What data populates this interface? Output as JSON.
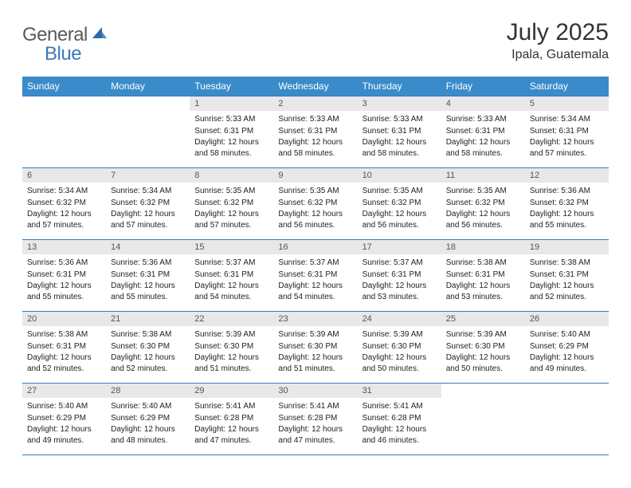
{
  "logo": {
    "general": "General",
    "blue": "Blue"
  },
  "title": {
    "month_year": "July 2025",
    "location": "Ipala, Guatemala"
  },
  "colors": {
    "header_bg": "#3a8bc9",
    "header_text": "#ffffff",
    "daynum_bg": "#e8e8e8",
    "border": "#3a7ab8",
    "logo_gray": "#5a5a5a",
    "logo_blue": "#3a7ab8"
  },
  "weekdays": [
    "Sunday",
    "Monday",
    "Tuesday",
    "Wednesday",
    "Thursday",
    "Friday",
    "Saturday"
  ],
  "weeks": [
    [
      null,
      null,
      {
        "n": "1",
        "sr": "Sunrise: 5:33 AM",
        "ss": "Sunset: 6:31 PM",
        "dl": "Daylight: 12 hours and 58 minutes."
      },
      {
        "n": "2",
        "sr": "Sunrise: 5:33 AM",
        "ss": "Sunset: 6:31 PM",
        "dl": "Daylight: 12 hours and 58 minutes."
      },
      {
        "n": "3",
        "sr": "Sunrise: 5:33 AM",
        "ss": "Sunset: 6:31 PM",
        "dl": "Daylight: 12 hours and 58 minutes."
      },
      {
        "n": "4",
        "sr": "Sunrise: 5:33 AM",
        "ss": "Sunset: 6:31 PM",
        "dl": "Daylight: 12 hours and 58 minutes."
      },
      {
        "n": "5",
        "sr": "Sunrise: 5:34 AM",
        "ss": "Sunset: 6:31 PM",
        "dl": "Daylight: 12 hours and 57 minutes."
      }
    ],
    [
      {
        "n": "6",
        "sr": "Sunrise: 5:34 AM",
        "ss": "Sunset: 6:32 PM",
        "dl": "Daylight: 12 hours and 57 minutes."
      },
      {
        "n": "7",
        "sr": "Sunrise: 5:34 AM",
        "ss": "Sunset: 6:32 PM",
        "dl": "Daylight: 12 hours and 57 minutes."
      },
      {
        "n": "8",
        "sr": "Sunrise: 5:35 AM",
        "ss": "Sunset: 6:32 PM",
        "dl": "Daylight: 12 hours and 57 minutes."
      },
      {
        "n": "9",
        "sr": "Sunrise: 5:35 AM",
        "ss": "Sunset: 6:32 PM",
        "dl": "Daylight: 12 hours and 56 minutes."
      },
      {
        "n": "10",
        "sr": "Sunrise: 5:35 AM",
        "ss": "Sunset: 6:32 PM",
        "dl": "Daylight: 12 hours and 56 minutes."
      },
      {
        "n": "11",
        "sr": "Sunrise: 5:35 AM",
        "ss": "Sunset: 6:32 PM",
        "dl": "Daylight: 12 hours and 56 minutes."
      },
      {
        "n": "12",
        "sr": "Sunrise: 5:36 AM",
        "ss": "Sunset: 6:32 PM",
        "dl": "Daylight: 12 hours and 55 minutes."
      }
    ],
    [
      {
        "n": "13",
        "sr": "Sunrise: 5:36 AM",
        "ss": "Sunset: 6:31 PM",
        "dl": "Daylight: 12 hours and 55 minutes."
      },
      {
        "n": "14",
        "sr": "Sunrise: 5:36 AM",
        "ss": "Sunset: 6:31 PM",
        "dl": "Daylight: 12 hours and 55 minutes."
      },
      {
        "n": "15",
        "sr": "Sunrise: 5:37 AM",
        "ss": "Sunset: 6:31 PM",
        "dl": "Daylight: 12 hours and 54 minutes."
      },
      {
        "n": "16",
        "sr": "Sunrise: 5:37 AM",
        "ss": "Sunset: 6:31 PM",
        "dl": "Daylight: 12 hours and 54 minutes."
      },
      {
        "n": "17",
        "sr": "Sunrise: 5:37 AM",
        "ss": "Sunset: 6:31 PM",
        "dl": "Daylight: 12 hours and 53 minutes."
      },
      {
        "n": "18",
        "sr": "Sunrise: 5:38 AM",
        "ss": "Sunset: 6:31 PM",
        "dl": "Daylight: 12 hours and 53 minutes."
      },
      {
        "n": "19",
        "sr": "Sunrise: 5:38 AM",
        "ss": "Sunset: 6:31 PM",
        "dl": "Daylight: 12 hours and 52 minutes."
      }
    ],
    [
      {
        "n": "20",
        "sr": "Sunrise: 5:38 AM",
        "ss": "Sunset: 6:31 PM",
        "dl": "Daylight: 12 hours and 52 minutes."
      },
      {
        "n": "21",
        "sr": "Sunrise: 5:38 AM",
        "ss": "Sunset: 6:30 PM",
        "dl": "Daylight: 12 hours and 52 minutes."
      },
      {
        "n": "22",
        "sr": "Sunrise: 5:39 AM",
        "ss": "Sunset: 6:30 PM",
        "dl": "Daylight: 12 hours and 51 minutes."
      },
      {
        "n": "23",
        "sr": "Sunrise: 5:39 AM",
        "ss": "Sunset: 6:30 PM",
        "dl": "Daylight: 12 hours and 51 minutes."
      },
      {
        "n": "24",
        "sr": "Sunrise: 5:39 AM",
        "ss": "Sunset: 6:30 PM",
        "dl": "Daylight: 12 hours and 50 minutes."
      },
      {
        "n": "25",
        "sr": "Sunrise: 5:39 AM",
        "ss": "Sunset: 6:30 PM",
        "dl": "Daylight: 12 hours and 50 minutes."
      },
      {
        "n": "26",
        "sr": "Sunrise: 5:40 AM",
        "ss": "Sunset: 6:29 PM",
        "dl": "Daylight: 12 hours and 49 minutes."
      }
    ],
    [
      {
        "n": "27",
        "sr": "Sunrise: 5:40 AM",
        "ss": "Sunset: 6:29 PM",
        "dl": "Daylight: 12 hours and 49 minutes."
      },
      {
        "n": "28",
        "sr": "Sunrise: 5:40 AM",
        "ss": "Sunset: 6:29 PM",
        "dl": "Daylight: 12 hours and 48 minutes."
      },
      {
        "n": "29",
        "sr": "Sunrise: 5:41 AM",
        "ss": "Sunset: 6:28 PM",
        "dl": "Daylight: 12 hours and 47 minutes."
      },
      {
        "n": "30",
        "sr": "Sunrise: 5:41 AM",
        "ss": "Sunset: 6:28 PM",
        "dl": "Daylight: 12 hours and 47 minutes."
      },
      {
        "n": "31",
        "sr": "Sunrise: 5:41 AM",
        "ss": "Sunset: 6:28 PM",
        "dl": "Daylight: 12 hours and 46 minutes."
      },
      null,
      null
    ]
  ]
}
